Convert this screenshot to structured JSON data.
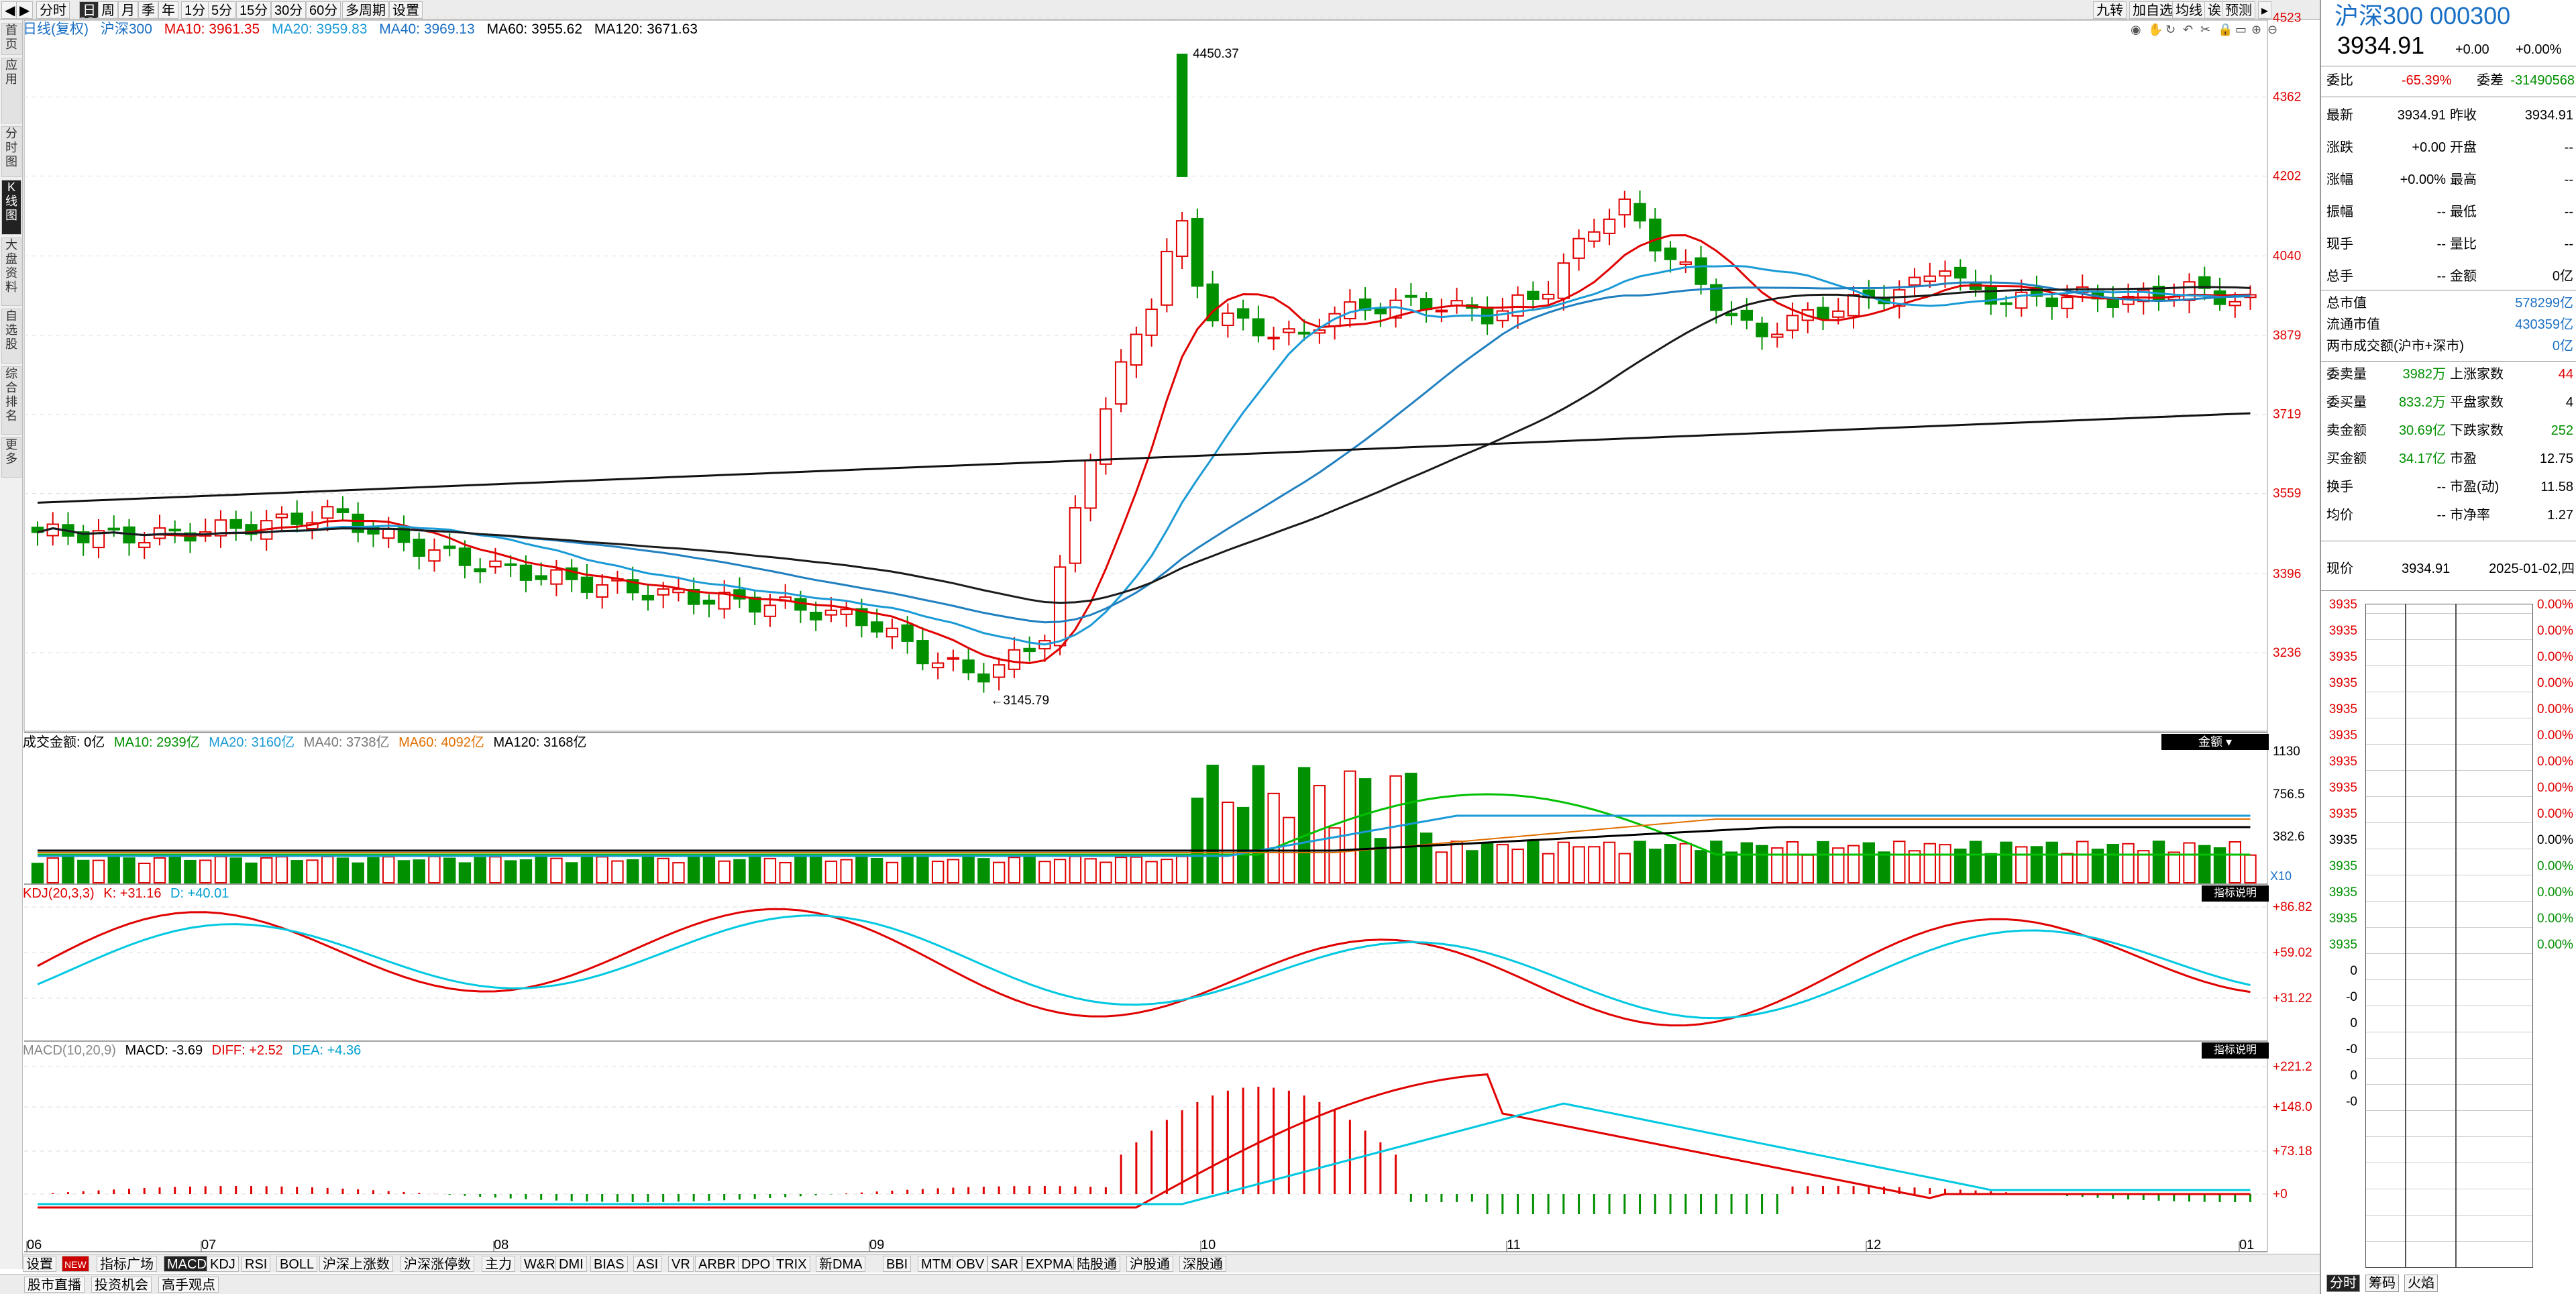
{
  "toolbar": {
    "left": [
      "◀",
      "▶",
      "分时",
      "日",
      "周",
      "月",
      "季",
      "年",
      "1分",
      "5分",
      "15分",
      "30分",
      "60分",
      "多周期",
      "设置"
    ],
    "right": [
      "九转",
      "加自选",
      "均线",
      "诶",
      "预测"
    ]
  },
  "sidebar": [
    "首页",
    "应用",
    "分时图",
    "K线图",
    "大盘资料",
    "自选股",
    "综合排名",
    "更多"
  ],
  "info": {
    "period": "日线(复权)",
    "name": "沪深300",
    "ma10": "MA10: 3961.35",
    "ma20": "MA20: 3959.83",
    "ma40": "MA40: 3969.13",
    "ma60": "MA60: 3955.62",
    "ma120": "MA120: 3671.63"
  },
  "kline_hi": "4450.37",
  "kline_lo": "3145.79",
  "price_axis": [
    "4523",
    "4362",
    "4202",
    "4040",
    "3879",
    "3719",
    "3559",
    "3396",
    "3236"
  ],
  "volume": {
    "hdr": "成交金额: 0亿",
    "ma10": "MA10: 2939亿",
    "ma20": "MA20: 3160亿",
    "ma40": "MA40: 3738亿",
    "ma60": "MA60: 4092亿",
    "ma120": "MA120: 3168亿",
    "ticks": [
      "1130",
      "756.5",
      "382.6"
    ],
    "unit": "X10",
    "btn": "金额"
  },
  "kdj": {
    "hdr": "KDJ(20,3,3)",
    "k": "K: +31.16",
    "d": "D: +40.01",
    "ticks": [
      "+86.82",
      "+59.02",
      "+31.22"
    ],
    "btn": "指标说明"
  },
  "macd": {
    "hdr": "MACD(10,20,9)",
    "macd": "MACD: -3.69",
    "diff": "DIFF: +2.52",
    "dea": "DEA: +4.36",
    "ticks": [
      "+221.2",
      "+148.0",
      "+73.18",
      "+0"
    ],
    "btn": "指标说明"
  },
  "months": [
    "06",
    "07",
    "08",
    "09",
    "10",
    "11",
    "12",
    "01"
  ],
  "bottom_tabs": [
    "设置",
    "NEW",
    "指标广场",
    "MACD",
    "KDJ",
    "RSI",
    "BOLL",
    "沪深上涨数",
    "沪深涨停数",
    "主力",
    "W&R",
    "DMI",
    "BIAS",
    "ASI",
    "VR",
    "ARBR",
    "DPO",
    "TRIX",
    "新DMA",
    "BBI",
    "MTM",
    "OBV",
    "SAR",
    "EXPMA",
    "陆股通",
    "沪股通",
    "深股通"
  ],
  "status_tabs": [
    "股市直播",
    "投资机会",
    "高手观点"
  ],
  "quote": {
    "title": "沪深300 000300",
    "price": "3934.91",
    "chg": "+0.00",
    "pct": "+0.00%",
    "weibi_l": "委比",
    "weibi_v": "-65.39%",
    "weicha_l": "委差",
    "weicha_v": "-31490568",
    "rows": [
      [
        "最新",
        "3934.91",
        "昨收",
        "3934.91"
      ],
      [
        "涨跌",
        "+0.00",
        "开盘",
        "--"
      ],
      [
        "涨幅",
        "+0.00%",
        "最高",
        "--"
      ],
      [
        "振幅",
        "--",
        "最低",
        "--"
      ],
      [
        "现手",
        "--",
        "量比",
        "--"
      ],
      [
        "总手",
        "--",
        "金额",
        "0亿"
      ]
    ],
    "cap": [
      [
        "总市值",
        "578299亿"
      ],
      [
        "流通市值",
        "430359亿"
      ],
      [
        "两市成交额(沪市+深市)",
        "0亿"
      ]
    ],
    "market": [
      [
        "委卖量",
        "3982万",
        "上涨家数",
        "44"
      ],
      [
        "委买量",
        "833.2万",
        "平盘家数",
        "4"
      ],
      [
        "卖金额",
        "30.69亿",
        "下跌家数",
        "252"
      ],
      [
        "买金额",
        "34.17亿",
        "市盈",
        "12.75"
      ],
      [
        "换手",
        "--",
        "市盈(动)",
        "11.58"
      ],
      [
        "均价",
        "--",
        "市净率",
        "1.27"
      ]
    ],
    "now_l": "现价",
    "now_v": "3934.91",
    "date": "2025-01-02,四",
    "ladder_price": "3935",
    "ladder_pct": "0.00%",
    "ladder_zero": "0",
    "bottom": [
      "分时",
      "筹码",
      "火焰"
    ]
  },
  "colors": {
    "up": "#e00000",
    "down": "#009000",
    "ma10": "#e00000",
    "ma20": "#1a9ad6",
    "ma40": "#000000",
    "ma60": "#1a1a1a",
    "ma120": "#000000"
  }
}
